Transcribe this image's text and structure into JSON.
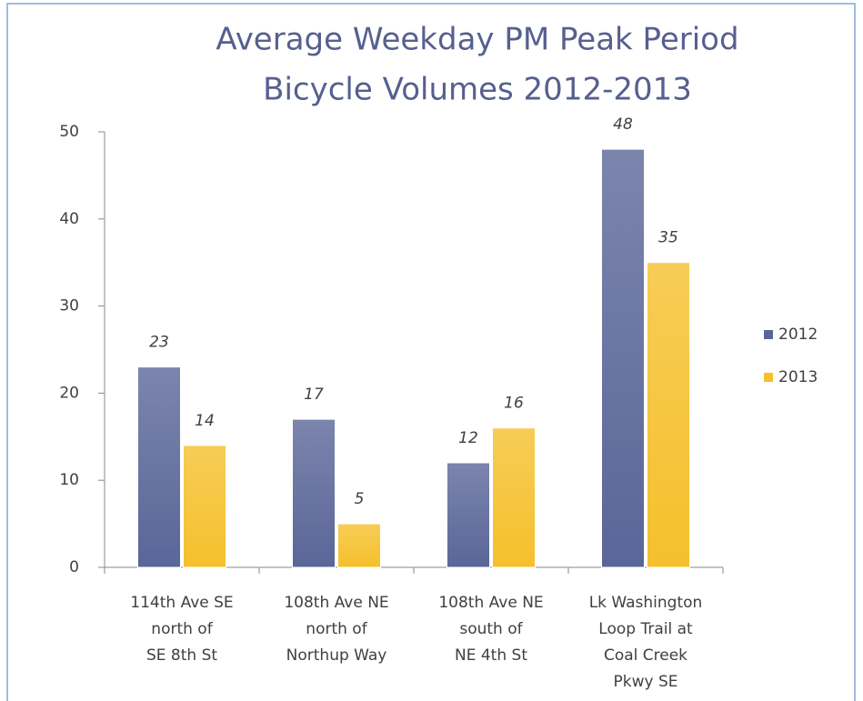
{
  "chart_data": {
    "type": "bar",
    "title": [
      "Average Weekday PM Peak Period",
      "Bicycle Volumes 2012-2013"
    ],
    "categories": [
      [
        "114th Ave SE",
        "north of",
        "SE 8th St"
      ],
      [
        "108th Ave NE",
        "north of",
        "Northup Way"
      ],
      [
        "108th Ave NE",
        "south of",
        "NE 4th St"
      ],
      [
        "Lk Washington",
        "Loop Trail  at",
        "Coal Creek",
        "Pkwy SE"
      ]
    ],
    "series": [
      {
        "name": "2012",
        "color": "#5a6698",
        "values": [
          23,
          17,
          12,
          48
        ]
      },
      {
        "name": "2013",
        "color": "#f5c02c",
        "values": [
          14,
          5,
          16,
          35
        ]
      }
    ],
    "ylim": [
      0,
      50
    ],
    "yticks": [
      0,
      10,
      20,
      30,
      40,
      50
    ],
    "legend": "right"
  }
}
